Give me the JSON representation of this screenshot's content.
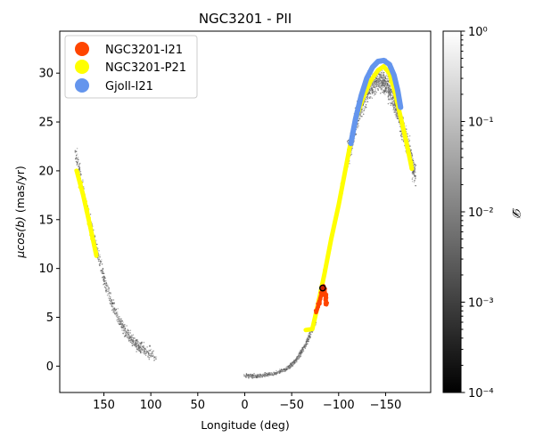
{
  "chart_data": {
    "type": "scatter",
    "title": "NGC3201 - PII",
    "xlabel": "Longitude (deg)",
    "ylabel_main": "μcos(b)",
    "ylabel_rest": " (mas/yr)",
    "xlim": [
      197,
      -198
    ],
    "ylim": [
      -2.7,
      34.3
    ],
    "x_ticks": [
      150,
      100,
      50,
      0,
      -50,
      -100,
      -150
    ],
    "x_tick_labels": [
      "150",
      "100",
      "50",
      "0",
      "−50",
      "−100",
      "−150"
    ],
    "y_ticks": [
      0,
      5,
      10,
      15,
      20,
      25,
      30
    ],
    "y_tick_labels": [
      "0",
      "5",
      "10",
      "15",
      "20",
      "25",
      "30"
    ],
    "grid": false,
    "legend_position": "top-left",
    "colorbar": {
      "label": "𝓓",
      "scale": "log",
      "range": [
        0.0001,
        1
      ],
      "ticks": [
        0.0001,
        0.001,
        0.01,
        0.1,
        1
      ],
      "tick_labels": [
        "10⁻⁴",
        "10⁻³",
        "10⁻²",
        "10⁻¹",
        "10⁰"
      ],
      "colormap": "gray"
    },
    "series": [
      {
        "name": "stream-background",
        "kind": "density",
        "segments": [
          {
            "points": [
              [
                180,
                22.0
              ],
              [
                170,
                17.0
              ],
              [
                160,
                13.0
              ],
              [
                150,
                9.0
              ],
              [
                140,
                6.0
              ],
              [
                130,
                4.0
              ],
              [
                120,
                2.6
              ],
              [
                110,
                1.8
              ],
              [
                95,
                1.1
              ]
            ],
            "spread": 0.45
          },
          {
            "points": [
              [
                0,
                -1.0
              ],
              [
                -15,
                -1.0
              ],
              [
                -30,
                -0.8
              ],
              [
                -45,
                -0.3
              ],
              [
                -55,
                0.6
              ],
              [
                -65,
                2.2
              ],
              [
                -75,
                4.5
              ]
            ],
            "spread": 0.15
          },
          {
            "points": [
              [
                -110,
                21.5
              ],
              [
                -118,
                25.0
              ],
              [
                -126,
                27.3
              ],
              [
                -134,
                28.7
              ],
              [
                -142,
                29.3
              ],
              [
                -150,
                29.0
              ],
              [
                -158,
                27.5
              ],
              [
                -166,
                25.0
              ],
              [
                -174,
                22.5
              ],
              [
                -181,
                19.5
              ]
            ],
            "spread": 0.9
          }
        ]
      },
      {
        "name": "NGC3201-P21",
        "color": "#ffff00",
        "segments": [
          {
            "points": [
              [
                179,
                20.0
              ],
              [
                172,
                17.5
              ],
              [
                165,
                14.5
              ],
              [
                158,
                11.3
              ]
            ]
          },
          {
            "points": [
              [
                -65,
                3.7
              ],
              [
                -72,
                3.8
              ],
              [
                -78,
                6.3
              ],
              [
                -85,
                9.5
              ],
              [
                -92,
                13.0
              ],
              [
                -100,
                16.5
              ],
              [
                -106,
                19.5
              ],
              [
                -112,
                22.5
              ],
              [
                -118,
                25.2
              ],
              [
                -126,
                27.5
              ],
              [
                -134,
                29.2
              ],
              [
                -142,
                30.3
              ],
              [
                -148,
                30.7
              ],
              [
                -154,
                30.0
              ],
              [
                -160,
                28.0
              ],
              [
                -166,
                25.5
              ],
              [
                -172,
                23.0
              ],
              [
                -178,
                20.2
              ]
            ]
          }
        ]
      },
      {
        "name": "Gjoll-I21",
        "color": "#6495ed",
        "segments": [
          {
            "points": [
              [
                -113,
                22.8
              ],
              [
                -118,
                25.3
              ],
              [
                -124,
                27.7
              ],
              [
                -130,
                29.5
              ],
              [
                -136,
                30.6
              ],
              [
                -142,
                31.2
              ],
              [
                -148,
                31.3
              ],
              [
                -154,
                30.9
              ],
              [
                -159,
                29.8
              ],
              [
                -163,
                28.2
              ],
              [
                -166,
                26.5
              ]
            ]
          }
        ]
      },
      {
        "name": "NGC3201-I21",
        "color": "#ff4500",
        "segments": [
          {
            "points": [
              [
                -76,
                5.5
              ],
              [
                -79,
                6.4
              ],
              [
                -82,
                7.5
              ],
              [
                -84,
                8.2
              ]
            ]
          },
          {
            "points": [
              [
                -84,
                8.2
              ],
              [
                -86,
                7.3
              ],
              [
                -87,
                6.3
              ]
            ]
          }
        ]
      }
    ],
    "markers": [
      {
        "name": "cluster-position",
        "x": -83,
        "y": 8.0,
        "fill": "#cc2200",
        "edge": "#000000"
      }
    ]
  }
}
